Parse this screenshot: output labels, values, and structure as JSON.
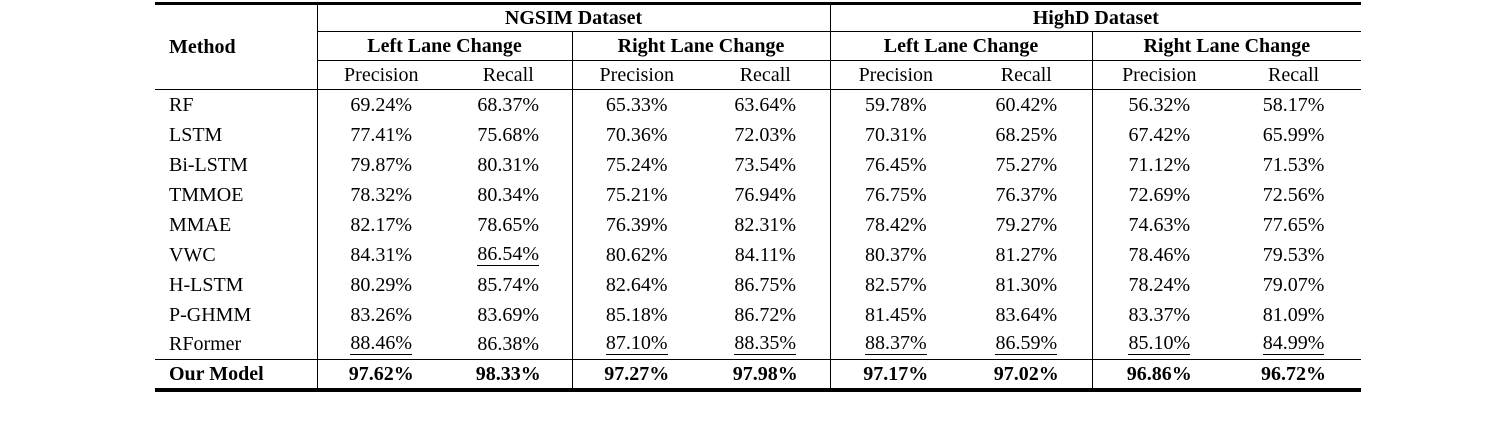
{
  "colors": {
    "text": "#000000",
    "background": "#ffffff",
    "rule": "#000000"
  },
  "table": {
    "method_label": "Method",
    "datasets": [
      {
        "label": "NGSIM Dataset",
        "groups": [
          "Left Lane Change",
          "Right Lane Change"
        ]
      },
      {
        "label": "HighD Dataset",
        "groups": [
          "Left Lane Change",
          "Right Lane Change"
        ]
      }
    ],
    "metrics": [
      "Precision",
      "Recall"
    ],
    "rows": [
      {
        "method": "RF",
        "values": [
          "69.24%",
          "68.37%",
          "65.33%",
          "63.64%",
          "59.78%",
          "60.42%",
          "56.32%",
          "58.17%"
        ],
        "underline": [],
        "bold": false
      },
      {
        "method": "LSTM",
        "values": [
          "77.41%",
          "75.68%",
          "70.36%",
          "72.03%",
          "70.31%",
          "68.25%",
          "67.42%",
          "65.99%"
        ],
        "underline": [],
        "bold": false
      },
      {
        "method": "Bi-LSTM",
        "values": [
          "79.87%",
          "80.31%",
          "75.24%",
          "73.54%",
          "76.45%",
          "75.27%",
          "71.12%",
          "71.53%"
        ],
        "underline": [],
        "bold": false
      },
      {
        "method": "TMMOE",
        "values": [
          "78.32%",
          "80.34%",
          "75.21%",
          "76.94%",
          "76.75%",
          "76.37%",
          "72.69%",
          "72.56%"
        ],
        "underline": [],
        "bold": false
      },
      {
        "method": "MMAE",
        "values": [
          "82.17%",
          "78.65%",
          "76.39%",
          "82.31%",
          "78.42%",
          "79.27%",
          "74.63%",
          "77.65%"
        ],
        "underline": [],
        "bold": false
      },
      {
        "method": "VWC",
        "values": [
          "84.31%",
          "86.54%",
          "80.62%",
          "84.11%",
          "80.37%",
          "81.27%",
          "78.46%",
          "79.53%"
        ],
        "underline": [
          1
        ],
        "bold": false
      },
      {
        "method": "H-LSTM",
        "values": [
          "80.29%",
          "85.74%",
          "82.64%",
          "86.75%",
          "82.57%",
          "81.30%",
          "78.24%",
          "79.07%"
        ],
        "underline": [],
        "bold": false
      },
      {
        "method": "P-GHMM",
        "values": [
          "83.26%",
          "83.69%",
          "85.18%",
          "86.72%",
          "81.45%",
          "83.64%",
          "83.37%",
          "81.09%"
        ],
        "underline": [],
        "bold": false
      },
      {
        "method": "RFormer",
        "values": [
          "88.46%",
          "86.38%",
          "87.10%",
          "88.35%",
          "88.37%",
          "86.59%",
          "85.10%",
          "84.99%"
        ],
        "underline": [
          0,
          2,
          3,
          4,
          5,
          6,
          7
        ],
        "bold": false
      },
      {
        "method": "Our Model",
        "values": [
          "97.62%",
          "98.33%",
          "97.27%",
          "97.98%",
          "97.17%",
          "97.02%",
          "96.86%",
          "96.72%"
        ],
        "underline": [],
        "bold": true
      }
    ]
  }
}
